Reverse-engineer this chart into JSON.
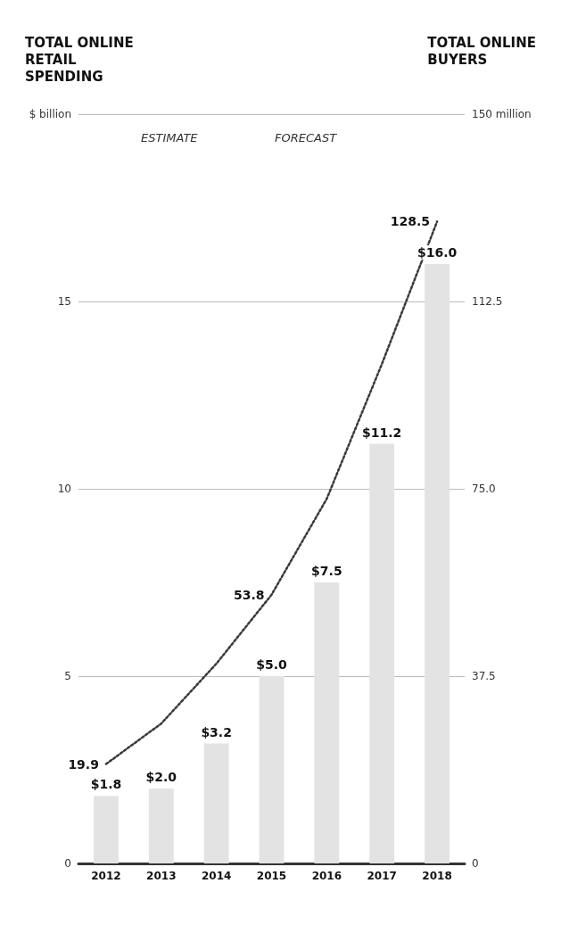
{
  "chart_data": {
    "type": "bar",
    "ylabel": "TOTAL ONLINE RETAIL SPENDING",
    "y2label": "TOTAL ONLINE BUYERS",
    "categories": [
      "2012",
      "2013",
      "2014",
      "2015",
      "2016",
      "2017",
      "2018"
    ],
    "series": [
      {
        "color": "#e3e3e3",
        "values": [
          1.8,
          2.0,
          3.2,
          5.0,
          7.5,
          11.2,
          16.0
        ],
        "value_labels": [
          "$1.8",
          "$2.0",
          "$3.2",
          "$5.0",
          "$7.5",
          "$11.2",
          "$16.0"
        ]
      },
      {
        "type": "line",
        "axis": "y2",
        "color": "#3a3a3a",
        "line_style": "dotted",
        "values": [
          19.9,
          28,
          40,
          53.8,
          73,
          100,
          128.5
        ],
        "value_labels": [
          "19.9",
          null,
          null,
          "53.8",
          null,
          null,
          "128.5"
        ]
      }
    ],
    "ylim": [
      0,
      20
    ],
    "yticks": [
      0,
      5,
      10,
      15,
      {
        "value": 20,
        "label": "$ billion"
      }
    ],
    "y2lim": [
      0,
      150
    ],
    "y2ticks": [
      0,
      37.5,
      {
        "value": 75,
        "label": "75.0"
      },
      112.5,
      {
        "value": 150,
        "label": "150 million"
      }
    ],
    "grid": "y",
    "annotations": [
      "ESTIMATE",
      "FORECAST"
    ]
  }
}
